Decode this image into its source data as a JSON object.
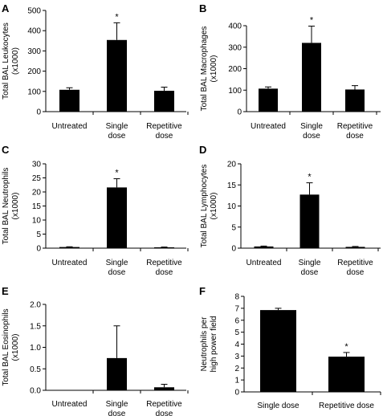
{
  "chart_data": [
    {
      "type": "bar",
      "panel_label": "A",
      "categories": [
        "Untreated",
        "Single dose",
        "Repetitive dose"
      ],
      "values": [
        108,
        354,
        103
      ],
      "errors": [
        10,
        85,
        18
      ],
      "significance": [
        "",
        "*",
        ""
      ],
      "ylabel": [
        "Total BAL Leukocytes",
        "(x1000)"
      ],
      "ylim": [
        0,
        500
      ],
      "yticks": [
        "0",
        "100",
        "200",
        "300",
        "400",
        "500"
      ],
      "grid": false
    },
    {
      "type": "bar",
      "panel_label": "B",
      "categories": [
        "Untreated",
        "Single dose",
        "Repetitive dose"
      ],
      "values": [
        107,
        320,
        103
      ],
      "errors": [
        8,
        78,
        18
      ],
      "significance": [
        "",
        "*",
        ""
      ],
      "ylabel": [
        "Total BAL Macrophages",
        "(x1000)"
      ],
      "ylim": [
        0,
        400
      ],
      "yticks": [
        "0",
        "100",
        "200",
        "300",
        "400"
      ],
      "grid": false
    },
    {
      "type": "bar",
      "panel_label": "C",
      "categories": [
        "Untreated",
        "Single dose",
        "Repetitive dose"
      ],
      "values": [
        0.4,
        21.6,
        0.3
      ],
      "errors": [
        0.1,
        3.1,
        0.1
      ],
      "significance": [
        "",
        "*",
        ""
      ],
      "ylabel": [
        "Total BAL Neutrophils",
        "(x1000)"
      ],
      "ylim": [
        0,
        30
      ],
      "yticks": [
        "0",
        "5",
        "10",
        "15",
        "20",
        "25",
        "30"
      ],
      "grid": false
    },
    {
      "type": "bar",
      "panel_label": "D",
      "categories": [
        "Untreated",
        "Single dose",
        "Repetitive dose"
      ],
      "values": [
        0.4,
        12.7,
        0.3
      ],
      "errors": [
        0.1,
        2.8,
        0.1
      ],
      "significance": [
        "",
        "*",
        ""
      ],
      "ylabel": [
        "Total BAL Lymphocytes",
        "(x1000)"
      ],
      "ylim": [
        0,
        20
      ],
      "yticks": [
        "0",
        "5",
        "10",
        "15",
        "20"
      ],
      "grid": false
    },
    {
      "type": "bar",
      "panel_label": "E",
      "categories": [
        "Untreated",
        "Single dose",
        "Repetitive dose"
      ],
      "values": [
        0.0,
        0.75,
        0.07
      ],
      "errors": [
        0.0,
        0.75,
        0.07
      ],
      "significance": [
        "",
        "",
        ""
      ],
      "ylabel": [
        "Total BAL Eosinophils",
        "(x1000)"
      ],
      "ylim": [
        0,
        2.0
      ],
      "yticks": [
        "0.0",
        "0.5",
        "1.0",
        "1.5",
        "2.0"
      ],
      "grid": false
    },
    {
      "type": "bar",
      "panel_label": "F",
      "categories": [
        "Single dose",
        "Repetitive dose"
      ],
      "values": [
        6.85,
        2.95
      ],
      "errors": [
        0.15,
        0.35
      ],
      "significance": [
        "",
        "*"
      ],
      "ylabel": [
        "Neutrophils per",
        "high power field"
      ],
      "ylim": [
        0,
        8
      ],
      "yticks": [
        "0",
        "1",
        "2",
        "3",
        "4",
        "5",
        "6",
        "7",
        "8"
      ],
      "grid": false
    }
  ]
}
